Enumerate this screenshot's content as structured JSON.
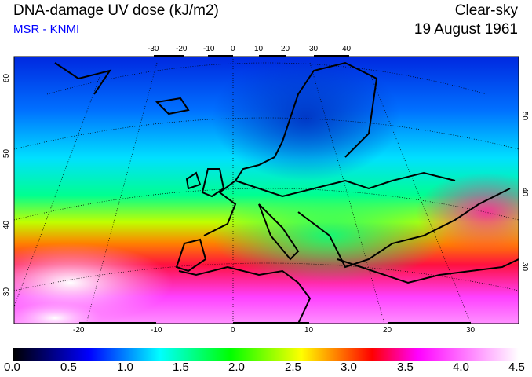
{
  "title": "DNA-damage UV dose (kJ/m2)",
  "source": "MSR - KNMI",
  "condition": "Clear-sky",
  "date": "19 August 1961",
  "map": {
    "top_lon_ticks": [
      "-30",
      "-20",
      "-10",
      "0",
      "10",
      "20",
      "30",
      "40"
    ],
    "bottom_lon_ticks": [
      "-20",
      "-10",
      "0",
      "10",
      "20",
      "30"
    ],
    "left_lat_ticks": [
      "60",
      "50",
      "40",
      "30"
    ],
    "right_lat_ticks": [
      "50",
      "40",
      "30"
    ]
  },
  "colorbar": {
    "labels": [
      "0.0",
      "0.5",
      "1.0",
      "1.5",
      "2.0",
      "2.5",
      "3.0",
      "3.5",
      "4.0",
      "4.5"
    ],
    "min": 0.0,
    "max": 4.5,
    "colors": [
      "#000000",
      "#0000ff",
      "#00ffff",
      "#00ff00",
      "#ffff00",
      "#ff0000",
      "#ff00ff",
      "#ffffff"
    ]
  }
}
